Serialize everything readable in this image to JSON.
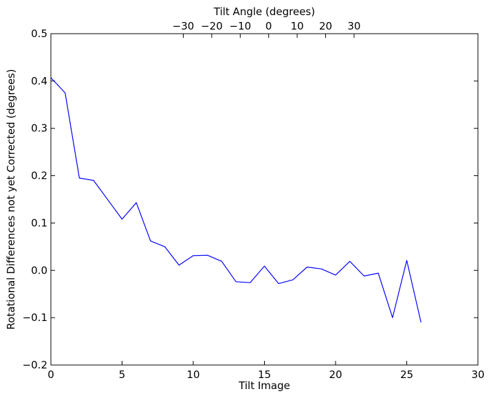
{
  "chart_data": {
    "type": "line",
    "xlabel": "Tilt Image",
    "ylabel": "Rotational Differences not yet Corrected (degrees)",
    "top_xlabel": "Tilt Angle (degrees)",
    "xlim": [
      0,
      30
    ],
    "ylim": [
      -0.2,
      0.5
    ],
    "x_ticks": [
      0,
      5,
      10,
      15,
      20,
      25,
      30
    ],
    "y_ticks": [
      -0.2,
      -0.1,
      0.0,
      0.1,
      0.2,
      0.3,
      0.4,
      0.5
    ],
    "x_tick_labels": [
      "0",
      "5",
      "10",
      "15",
      "20",
      "25",
      "30"
    ],
    "y_tick_labels": [
      "−0.2",
      "−0.1",
      "0.0",
      "0.1",
      "0.2",
      "0.3",
      "0.4",
      "0.5"
    ],
    "top_ticks": [
      {
        "label": "−30",
        "angle": -30
      },
      {
        "label": "−20",
        "angle": -20
      },
      {
        "label": "−10",
        "angle": -10
      },
      {
        "label": "0",
        "angle": 0
      },
      {
        "label": "10",
        "angle": 10
      },
      {
        "label": "20",
        "angle": 20
      },
      {
        "label": "30",
        "angle": 30
      }
    ],
    "angle_to_image": {
      "image_at_zero_angle": 15.3,
      "images_per_degree": 0.2
    },
    "grid": false,
    "series": [
      {
        "color": "#0000ff",
        "x": [
          0,
          1,
          2,
          3,
          4,
          5,
          6,
          7,
          8,
          9,
          10,
          11,
          12,
          13,
          14,
          15,
          16,
          17,
          18,
          19,
          20,
          21,
          22,
          23,
          24,
          25,
          26
        ],
        "y": [
          0.407,
          0.375,
          0.195,
          0.19,
          0.149,
          0.108,
          0.143,
          0.062,
          0.05,
          0.011,
          0.031,
          0.032,
          0.019,
          -0.024,
          -0.026,
          0.009,
          -0.028,
          -0.02,
          0.007,
          0.003,
          -0.01,
          0.019,
          -0.012,
          -0.006,
          -0.1,
          0.021,
          -0.11
        ]
      }
    ]
  }
}
